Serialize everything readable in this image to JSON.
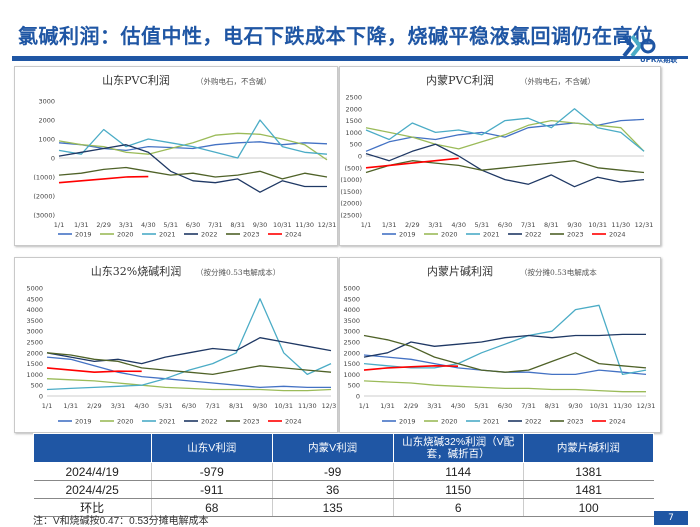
{
  "header": {
    "title": "氯碱利润：估值中性，电石下跌成本下降，烧碱平稳液氯回调仍在高位",
    "logo_text": "UPR众期联"
  },
  "colors": {
    "brand": "#1f56a4",
    "y2019": "#4472c4",
    "y2020": "#9bbb59",
    "y2021": "#4bacc6",
    "y2022": "#1f3864",
    "y2023": "#4f6228",
    "y2024": "#ff0000"
  },
  "chart_data": [
    {
      "type": "line",
      "id": "sd_pvc",
      "title": "山东PVC利润",
      "subtitle": "（外购电石，不含碱）",
      "ylim": [
        -3000,
        3000
      ],
      "yticks": [
        3000,
        2000,
        1000,
        0,
        -1000,
        -2000,
        -3000
      ],
      "ytick_labels": [
        "3000",
        "2000",
        "1000",
        "0",
        "(1000)",
        "(2000)",
        "(3000)"
      ],
      "xticks": [
        "1/1",
        "1/31",
        "2/29",
        "3/31",
        "4/30",
        "5/31",
        "6/30",
        "7/31",
        "8/31",
        "9/30",
        "10/31",
        "11/30",
        "12/31"
      ],
      "series": [
        {
          "name": "2019",
          "color_key": "y2019",
          "values": [
            800,
            700,
            500,
            400,
            600,
            550,
            500,
            700,
            800,
            850,
            700,
            800,
            750
          ]
        },
        {
          "name": "2020",
          "color_key": "y2020",
          "values": [
            900,
            700,
            600,
            300,
            200,
            500,
            800,
            1200,
            1300,
            1250,
            1000,
            700,
            -100
          ]
        },
        {
          "name": "2021",
          "color_key": "y2021",
          "values": [
            400,
            200,
            1500,
            600,
            1000,
            800,
            600,
            300,
            0,
            2000,
            600,
            300,
            200
          ]
        },
        {
          "name": "2022",
          "color_key": "y2022",
          "values": [
            100,
            300,
            500,
            700,
            300,
            -700,
            -1200,
            -1300,
            -1100,
            -1800,
            -1200,
            -1500,
            -1500
          ]
        },
        {
          "name": "2023",
          "color_key": "y2023",
          "values": [
            -900,
            -800,
            -600,
            -500,
            -700,
            -900,
            -800,
            -1000,
            -900,
            -700,
            -1100,
            -800,
            -1000
          ]
        },
        {
          "name": "2024",
          "color_key": "y2024",
          "values": [
            -1300,
            -1200,
            -1100,
            -1000,
            -979
          ]
        }
      ]
    },
    {
      "type": "line",
      "id": "nm_pvc",
      "title": "内蒙PVC利润",
      "subtitle": "（外购电石，不含碱）",
      "ylim": [
        -2500,
        2500
      ],
      "yticks": [
        2500,
        2000,
        1500,
        1000,
        500,
        0,
        -500,
        -1000,
        -1500,
        -2000,
        -2500
      ],
      "ytick_labels": [
        "2500",
        "2000",
        "1500",
        "1000",
        "500",
        "0",
        "(500)",
        "(1000)",
        "(1500)",
        "(2000)",
        "(2500)"
      ],
      "xticks": [
        "1/1",
        "1/31",
        "2/29",
        "3/31",
        "4/30",
        "5/31",
        "6/30",
        "7/31",
        "8/31",
        "9/30",
        "10/31",
        "11/30",
        "12/31"
      ],
      "series": [
        {
          "name": "2019",
          "color_key": "y2019",
          "values": [
            200,
            600,
            800,
            700,
            900,
            1000,
            800,
            1200,
            1300,
            1400,
            1300,
            1500,
            1550
          ]
        },
        {
          "name": "2020",
          "color_key": "y2020",
          "values": [
            1200,
            1000,
            800,
            500,
            300,
            600,
            900,
            1300,
            1500,
            1400,
            1300,
            1200,
            200
          ]
        },
        {
          "name": "2021",
          "color_key": "y2021",
          "values": [
            1100,
            700,
            1400,
            1000,
            1100,
            900,
            1500,
            1600,
            1200,
            2000,
            1200,
            1000,
            200
          ]
        },
        {
          "name": "2022",
          "color_key": "y2022",
          "values": [
            100,
            -200,
            200,
            500,
            0,
            -600,
            -1000,
            -1200,
            -800,
            -1300,
            -900,
            -1100,
            -1000
          ]
        },
        {
          "name": "2023",
          "color_key": "y2023",
          "values": [
            -700,
            -400,
            -200,
            -300,
            -400,
            -600,
            -500,
            -400,
            -300,
            -200,
            -500,
            -600,
            -700
          ]
        },
        {
          "name": "2024",
          "color_key": "y2024",
          "values": [
            -500,
            -400,
            -300,
            -200,
            -99
          ]
        }
      ]
    },
    {
      "type": "line",
      "id": "sd_caustic",
      "title": "山东32%烧碱利润",
      "subtitle": "（按分摊0.53电解成本）",
      "ylim": [
        0,
        5000
      ],
      "yticks": [
        5000,
        4500,
        4000,
        3500,
        3000,
        2500,
        2000,
        1500,
        1000,
        500,
        0
      ],
      "ytick_labels": [
        "5000",
        "4500",
        "4000",
        "3500",
        "3000",
        "2500",
        "2000",
        "1500",
        "1000",
        "500",
        "0"
      ],
      "xticks": [
        "1/1",
        "1/31",
        "2/29",
        "3/31",
        "4/30",
        "5/31",
        "6/30",
        "7/31",
        "8/31",
        "9/30",
        "10/31",
        "11/30",
        "12/31"
      ],
      "series": [
        {
          "name": "2019",
          "color_key": "y2019",
          "values": [
            1800,
            1700,
            1400,
            1100,
            900,
            800,
            700,
            600,
            500,
            400,
            450,
            400,
            400
          ]
        },
        {
          "name": "2020",
          "color_key": "y2020",
          "values": [
            800,
            750,
            700,
            600,
            500,
            400,
            350,
            300,
            300,
            300,
            250,
            250,
            300
          ]
        },
        {
          "name": "2021",
          "color_key": "y2021",
          "values": [
            300,
            350,
            400,
            450,
            500,
            800,
            1200,
            1500,
            2000,
            4500,
            2000,
            1000,
            1500
          ]
        },
        {
          "name": "2022",
          "color_key": "y2022",
          "values": [
            2000,
            1800,
            1600,
            1700,
            1500,
            1800,
            2000,
            2200,
            2100,
            2700,
            2500,
            2300,
            2100
          ]
        },
        {
          "name": "2023",
          "color_key": "y2023",
          "values": [
            2000,
            1900,
            1700,
            1600,
            1300,
            1200,
            1100,
            1000,
            1200,
            1400,
            1300,
            1200,
            1100
          ]
        },
        {
          "name": "2024",
          "color_key": "y2024",
          "values": [
            1300,
            1200,
            1100,
            1150,
            1144
          ]
        }
      ]
    },
    {
      "type": "line",
      "id": "nm_flake",
      "title": "内蒙片碱利润",
      "subtitle": "（按分摊0.53电解成本",
      "ylim": [
        0,
        5000
      ],
      "yticks": [
        5000,
        4500,
        4000,
        3500,
        3000,
        2500,
        2000,
        1500,
        1000,
        500,
        0
      ],
      "ytick_labels": [
        "5000",
        "4500",
        "4000",
        "3500",
        "3000",
        "2500",
        "2000",
        "1500",
        "1000",
        "500",
        "0"
      ],
      "xticks": [
        "1/1",
        "1/31",
        "2/29",
        "3/31",
        "4/30",
        "5/31",
        "6/30",
        "7/31",
        "8/31",
        "9/30",
        "10/31",
        "11/30",
        "12/31"
      ],
      "series": [
        {
          "name": "2019",
          "color_key": "y2019",
          "values": [
            1900,
            1800,
            1700,
            1500,
            1300,
            1200,
            1100,
            1100,
            1000,
            1000,
            1200,
            1100,
            1000
          ]
        },
        {
          "name": "2020",
          "color_key": "y2020",
          "values": [
            700,
            650,
            600,
            500,
            450,
            400,
            350,
            350,
            300,
            300,
            250,
            200,
            200
          ]
        },
        {
          "name": "2021",
          "color_key": "y2021",
          "values": [
            1500,
            1400,
            1300,
            1300,
            1500,
            2000,
            2400,
            2800,
            3000,
            4000,
            4200,
            1000,
            1200
          ]
        },
        {
          "name": "2022",
          "color_key": "y2022",
          "values": [
            1800,
            2000,
            2500,
            2300,
            2400,
            2500,
            2700,
            2800,
            2700,
            2800,
            2800,
            2850,
            2850
          ]
        },
        {
          "name": "2023",
          "color_key": "y2023",
          "values": [
            2800,
            2600,
            2300,
            1800,
            1500,
            1200,
            1100,
            1200,
            1600,
            2000,
            1500,
            1400,
            1300
          ]
        },
        {
          "name": "2024",
          "color_key": "y2024",
          "values": [
            1200,
            1300,
            1350,
            1400,
            1381
          ]
        }
      ]
    }
  ],
  "legend": [
    "2019",
    "2020",
    "2021",
    "2022",
    "2023",
    "2024"
  ],
  "table": {
    "headers": [
      "",
      "山东V利润",
      "内蒙V利润",
      "山东烧碱32%利润（V配套，碱折百）",
      "内蒙片碱利润"
    ],
    "rows": [
      [
        "2024/4/19",
        "-979",
        "-99",
        "1144",
        "1381"
      ],
      [
        "2024/4/25",
        "-911",
        "36",
        "1150",
        "1481"
      ],
      [
        "环比",
        "68",
        "135",
        "6",
        "100"
      ]
    ]
  },
  "footnote": "注：V和烧碱按0.47：0.53分摊电解成本",
  "page_number": "7"
}
